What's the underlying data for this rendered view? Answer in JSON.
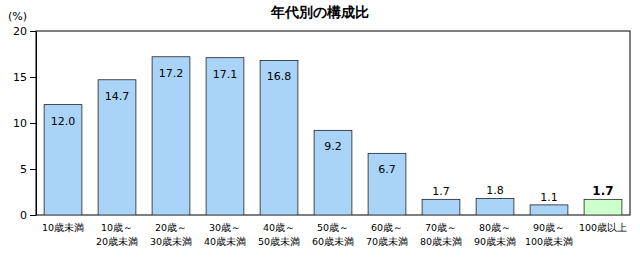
{
  "chart_data": {
    "type": "bar",
    "title": "年代別の構成比",
    "y_label": "(%)",
    "categories": [
      "10歳未満",
      "10歳～20歳未満",
      "20歳～30歳未満",
      "30歳～40歳未満",
      "40歳～50歳未満",
      "50歳～60歳未満",
      "60歳～70歳未満",
      "70歳～80歳未満",
      "80歳～90歳未満",
      "90歳～100歳未満",
      "100歳以上"
    ],
    "values": [
      12.0,
      14.7,
      17.2,
      17.1,
      16.8,
      9.2,
      6.7,
      1.7,
      1.8,
      1.1,
      1.7
    ],
    "value_labels": [
      "12.0",
      "14.7",
      "17.2",
      "17.1",
      "16.8",
      "9.2",
      "6.7",
      "1.7",
      "1.8",
      "1.1",
      "1.7"
    ],
    "colors": [
      "#a9d3f7",
      "#a9d3f7",
      "#a9d3f7",
      "#a9d3f7",
      "#a9d3f7",
      "#a9d3f7",
      "#a9d3f7",
      "#a9d3f7",
      "#a9d3f7",
      "#a9d3f7",
      "#ccffcc"
    ],
    "ylim": [
      0,
      20
    ],
    "yticks": [
      0,
      5,
      10,
      15,
      20
    ],
    "grid": false,
    "data_labels": true
  }
}
